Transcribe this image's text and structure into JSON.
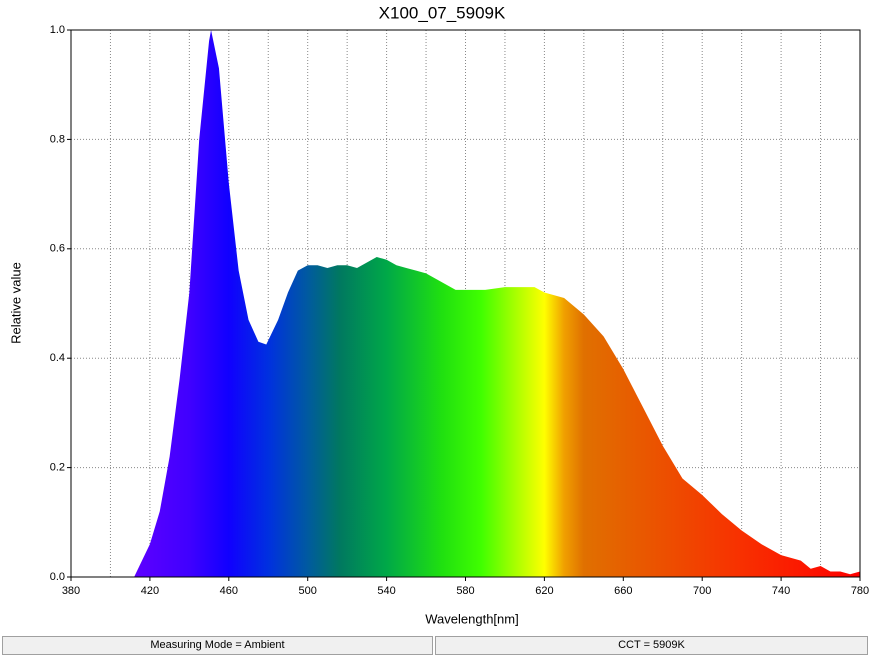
{
  "chart_data": {
    "type": "area",
    "title": "X100_07_5909K",
    "x_label": "Wavelength[nm]",
    "y_label": "Relative value",
    "x": [
      412,
      420,
      425,
      430,
      435,
      440,
      445,
      450,
      451,
      455,
      460,
      465,
      470,
      475,
      479,
      485,
      490,
      495,
      500,
      505,
      510,
      515,
      520,
      525,
      530,
      535,
      540,
      545,
      550,
      555,
      560,
      565,
      570,
      575,
      580,
      590,
      600,
      610,
      615,
      620,
      630,
      640,
      650,
      660,
      670,
      680,
      690,
      700,
      710,
      720,
      730,
      740,
      745,
      750,
      755,
      760,
      765,
      770,
      775,
      780
    ],
    "series": [
      {
        "values": [
          0,
          0.06,
          0.12,
          0.22,
          0.36,
          0.52,
          0.8,
          0.98,
          1.0,
          0.93,
          0.72,
          0.56,
          0.47,
          0.43,
          0.425,
          0.47,
          0.52,
          0.56,
          0.57,
          0.57,
          0.565,
          0.57,
          0.57,
          0.565,
          0.575,
          0.585,
          0.58,
          0.57,
          0.565,
          0.56,
          0.555,
          0.545,
          0.535,
          0.525,
          0.525,
          0.525,
          0.53,
          0.53,
          0.53,
          0.52,
          0.51,
          0.48,
          0.44,
          0.38,
          0.31,
          0.24,
          0.18,
          0.15,
          0.115,
          0.085,
          0.06,
          0.04,
          0.035,
          0.03,
          0.015,
          0.02,
          0.01,
          0.01,
          0.005,
          0.01
        ]
      }
    ],
    "xlim": [
      380,
      780
    ],
    "xticks": [
      380,
      420,
      460,
      500,
      540,
      580,
      620,
      660,
      700,
      740,
      780
    ],
    "ylim": [
      0,
      1
    ],
    "yticks": [
      {
        "value": 0,
        "label": "0.0"
      },
      0.2,
      0.4,
      0.6,
      0.8,
      {
        "value": 1,
        "label": "1.0"
      }
    ],
    "grid": true
  },
  "status_bar": [
    "Measuring Mode = Ambient",
    "CCT = 5909K"
  ]
}
